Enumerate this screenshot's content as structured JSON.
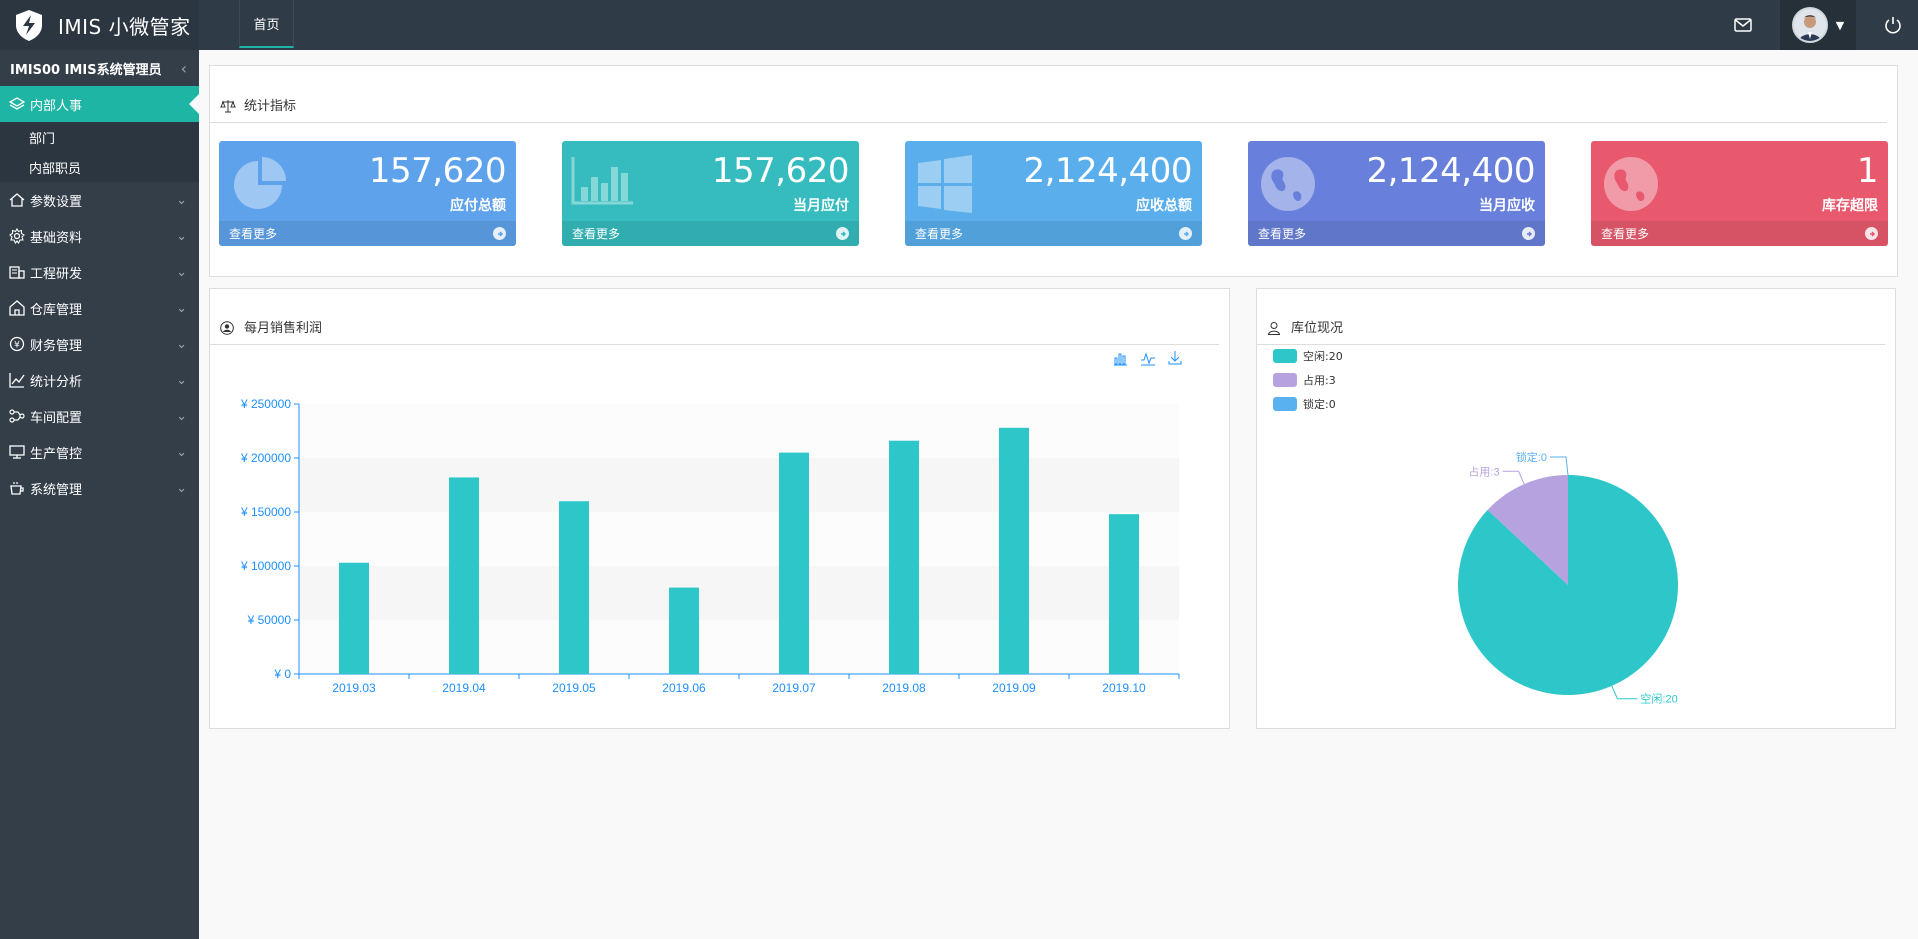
{
  "app": {
    "title": "IMIS 小微管家"
  },
  "topbar": {
    "tab_home": "首页"
  },
  "sidebar": {
    "user": "IMIS00 IMIS系统管理员",
    "active_group": "内部人事",
    "sub_items": [
      "部门",
      "内部职员"
    ],
    "items": [
      "参数设置",
      "基础资料",
      "工程研发",
      "仓库管理",
      "财务管理",
      "统计分析",
      "车间配置",
      "生产管控",
      "系统管理"
    ]
  },
  "stats_panel": {
    "title": "统计指标"
  },
  "cards": [
    {
      "value": "157,620",
      "label": "应付总额",
      "more": "查看更多",
      "color": "#5fa2ec",
      "icon": "pie-chart-icon"
    },
    {
      "value": "157,620",
      "label": "当月应付",
      "more": "查看更多",
      "color": "#36bcbf",
      "icon": "bar-chart-icon"
    },
    {
      "value": "2,124,400",
      "label": "应收总额",
      "more": "查看更多",
      "color": "#5aaeec",
      "icon": "windows-icon"
    },
    {
      "value": "2,124,400",
      "label": "当月应收",
      "more": "查看更多",
      "color": "#6880db",
      "icon": "globe-icon"
    },
    {
      "value": "1",
      "label": "库存超限",
      "more": "查看更多",
      "color": "#e9596e",
      "icon": "globe-icon"
    }
  ],
  "sales_panel": {
    "title": "每月销售利润"
  },
  "storage_panel": {
    "title": "库位现况"
  },
  "chart_data": [
    {
      "type": "bar",
      "title": "每月销售利润",
      "categories": [
        "2019.03",
        "2019.04",
        "2019.05",
        "2019.06",
        "2019.07",
        "2019.08",
        "2019.09",
        "2019.10"
      ],
      "values": [
        103000,
        182000,
        160000,
        80000,
        205000,
        216000,
        228000,
        148000
      ],
      "yticks": [
        "¥ 0",
        "¥ 50000",
        "¥ 100000",
        "¥ 150000",
        "¥ 200000",
        "¥ 250000"
      ],
      "ylim": [
        0,
        250000
      ],
      "color": "#2ec7c9"
    },
    {
      "type": "pie",
      "title": "库位现况",
      "labels": [
        "空闲",
        "占用",
        "锁定"
      ],
      "values": [
        20,
        3,
        0
      ],
      "legend": [
        "空闲:20",
        "占用:3",
        "锁定:0"
      ],
      "slice_labels": [
        "空闲:20",
        "占用:3",
        "锁定:0"
      ],
      "colors": [
        "#2ec7c9",
        "#b6a2de",
        "#5ab1ef"
      ]
    }
  ]
}
